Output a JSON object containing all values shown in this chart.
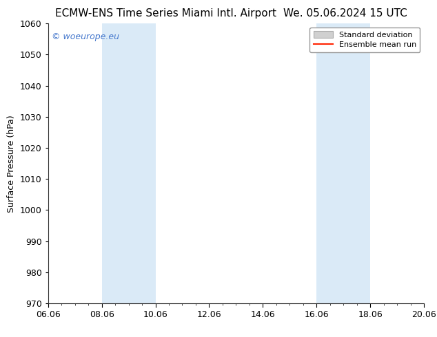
{
  "title_left": "ECMW-ENS Time Series Miami Intl. Airport",
  "title_right": "We. 05.06.2024 15 UTC",
  "ylabel": "Surface Pressure (hPa)",
  "ylim": [
    970,
    1060
  ],
  "yticks": [
    970,
    980,
    990,
    1000,
    1010,
    1020,
    1030,
    1040,
    1050,
    1060
  ],
  "xtick_labels": [
    "06.06",
    "08.06",
    "10.06",
    "12.06",
    "14.06",
    "16.06",
    "18.06",
    "20.06"
  ],
  "xtick_positions": [
    0,
    2,
    4,
    6,
    8,
    10,
    12,
    14
  ],
  "xlim": [
    0,
    14
  ],
  "shaded_bands": [
    {
      "x_start": 2,
      "x_end": 4
    },
    {
      "x_start": 10,
      "x_end": 12
    }
  ],
  "shade_color": "#daeaf7",
  "watermark_text": "© woeurope.eu",
  "watermark_color": "#4477cc",
  "legend_std_label": "Standard deviation",
  "legend_mean_label": "Ensemble mean run",
  "legend_std_color": "#d0d0d0",
  "legend_mean_color": "#ff2200",
  "background_color": "#ffffff",
  "title_fontsize": 11,
  "axis_label_fontsize": 9,
  "tick_fontsize": 9,
  "watermark_fontsize": 9
}
